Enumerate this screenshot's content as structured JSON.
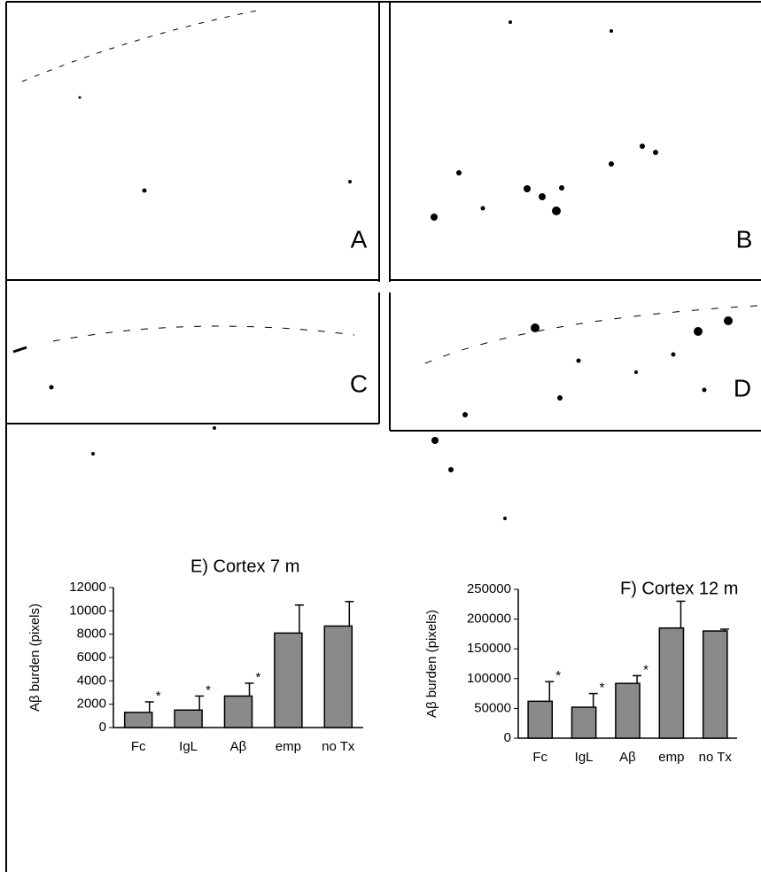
{
  "panels": [
    "A",
    "B",
    "C",
    "D"
  ],
  "chart_data": [
    {
      "type": "bar",
      "title": "E) Cortex 7 m",
      "y_label": "Aβ burden (pixels)",
      "categories": [
        "Fc",
        "IgL",
        "Aβ",
        "emp",
        "no Tx"
      ],
      "values": [
        1300,
        1500,
        2700,
        8100,
        8700
      ],
      "errors": [
        900,
        1200,
        1100,
        2400,
        2100
      ],
      "annotations": [
        "*",
        "*",
        "*",
        null,
        null
      ],
      "color": "#8a8a8a",
      "ylim": [
        0,
        12000
      ],
      "yticks": [
        0,
        2000,
        4000,
        6000,
        8000,
        10000,
        12000
      ]
    },
    {
      "type": "bar",
      "title": "F) Cortex 12 m",
      "y_label": "Aβ burden (pixels)",
      "categories": [
        "Fc",
        "IgL",
        "Aβ",
        "emp",
        "no Tx"
      ],
      "values": [
        62000,
        52000,
        92000,
        185000,
        180000
      ],
      "errors": [
        33000,
        23000,
        13000,
        45000,
        3000
      ],
      "annotations": [
        "*",
        "*",
        "*",
        null,
        null
      ],
      "color": "#8a8a8a",
      "ylim": [
        0,
        250000
      ],
      "yticks": [
        0,
        50000,
        100000,
        150000,
        200000,
        250000
      ]
    }
  ]
}
